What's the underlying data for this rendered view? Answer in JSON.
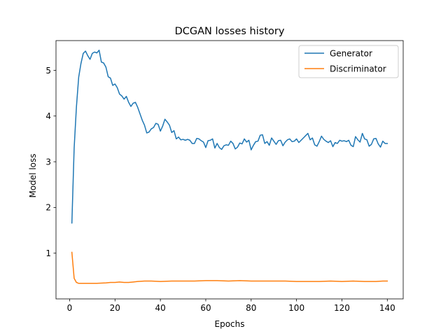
{
  "chart_data": {
    "type": "line",
    "title": "DCGAN losses history",
    "xlabel": "Epochs",
    "ylabel": "Model loss",
    "xlim": [
      -6,
      147
    ],
    "ylim": [
      0.0,
      5.65
    ],
    "xticks": [
      0,
      20,
      40,
      60,
      80,
      100,
      120,
      140
    ],
    "yticks": [
      1,
      2,
      3,
      4,
      5
    ],
    "grid": false,
    "legend": "top-right",
    "series": [
      {
        "name": "Generator",
        "color": "#1f77b4",
        "values": [
          [
            1,
            1.66
          ],
          [
            2,
            3.3
          ],
          [
            3,
            4.2
          ],
          [
            4,
            4.85
          ],
          [
            5,
            5.15
          ],
          [
            6,
            5.37
          ],
          [
            7,
            5.42
          ],
          [
            8,
            5.32
          ],
          [
            9,
            5.24
          ],
          [
            10,
            5.37
          ],
          [
            11,
            5.4
          ],
          [
            12,
            5.38
          ],
          [
            13,
            5.44
          ],
          [
            14,
            5.18
          ],
          [
            15,
            5.16
          ],
          [
            16,
            5.07
          ],
          [
            17,
            4.86
          ],
          [
            18,
            4.83
          ],
          [
            19,
            4.67
          ],
          [
            20,
            4.7
          ],
          [
            21,
            4.62
          ],
          [
            22,
            4.48
          ],
          [
            23,
            4.44
          ],
          [
            24,
            4.37
          ],
          [
            25,
            4.43
          ],
          [
            26,
            4.3
          ],
          [
            27,
            4.21
          ],
          [
            28,
            4.28
          ],
          [
            29,
            4.3
          ],
          [
            30,
            4.19
          ],
          [
            31,
            4.05
          ],
          [
            32,
            3.91
          ],
          [
            33,
            3.8
          ],
          [
            34,
            3.63
          ],
          [
            35,
            3.65
          ],
          [
            36,
            3.72
          ],
          [
            37,
            3.75
          ],
          [
            38,
            3.84
          ],
          [
            39,
            3.82
          ],
          [
            40,
            3.67
          ],
          [
            41,
            3.78
          ],
          [
            42,
            3.93
          ],
          [
            43,
            3.87
          ],
          [
            44,
            3.8
          ],
          [
            45,
            3.64
          ],
          [
            46,
            3.68
          ],
          [
            47,
            3.5
          ],
          [
            48,
            3.54
          ],
          [
            49,
            3.48
          ],
          [
            50,
            3.49
          ],
          [
            51,
            3.47
          ],
          [
            52,
            3.49
          ],
          [
            53,
            3.47
          ],
          [
            54,
            3.4
          ],
          [
            55,
            3.4
          ],
          [
            56,
            3.51
          ],
          [
            57,
            3.5
          ],
          [
            58,
            3.46
          ],
          [
            59,
            3.43
          ],
          [
            60,
            3.31
          ],
          [
            61,
            3.46
          ],
          [
            62,
            3.47
          ],
          [
            63,
            3.5
          ],
          [
            64,
            3.3
          ],
          [
            65,
            3.4
          ],
          [
            66,
            3.31
          ],
          [
            67,
            3.27
          ],
          [
            68,
            3.35
          ],
          [
            69,
            3.37
          ],
          [
            70,
            3.36
          ],
          [
            71,
            3.45
          ],
          [
            72,
            3.4
          ],
          [
            73,
            3.28
          ],
          [
            74,
            3.32
          ],
          [
            75,
            3.41
          ],
          [
            76,
            3.39
          ],
          [
            77,
            3.5
          ],
          [
            78,
            3.43
          ],
          [
            79,
            3.47
          ],
          [
            80,
            3.26
          ],
          [
            81,
            3.36
          ],
          [
            82,
            3.44
          ],
          [
            83,
            3.45
          ],
          [
            84,
            3.58
          ],
          [
            85,
            3.59
          ],
          [
            86,
            3.4
          ],
          [
            87,
            3.44
          ],
          [
            88,
            3.36
          ],
          [
            89,
            3.52
          ],
          [
            90,
            3.45
          ],
          [
            91,
            3.38
          ],
          [
            92,
            3.46
          ],
          [
            93,
            3.47
          ],
          [
            94,
            3.35
          ],
          [
            95,
            3.43
          ],
          [
            96,
            3.48
          ],
          [
            97,
            3.5
          ],
          [
            98,
            3.44
          ],
          [
            99,
            3.45
          ],
          [
            100,
            3.5
          ],
          [
            101,
            3.42
          ],
          [
            102,
            3.47
          ],
          [
            103,
            3.52
          ],
          [
            104,
            3.57
          ],
          [
            105,
            3.62
          ],
          [
            106,
            3.48
          ],
          [
            107,
            3.52
          ],
          [
            108,
            3.37
          ],
          [
            109,
            3.34
          ],
          [
            110,
            3.44
          ],
          [
            111,
            3.56
          ],
          [
            112,
            3.49
          ],
          [
            113,
            3.45
          ],
          [
            114,
            3.42
          ],
          [
            115,
            3.46
          ],
          [
            116,
            3.33
          ],
          [
            117,
            3.42
          ],
          [
            118,
            3.4
          ],
          [
            119,
            3.47
          ],
          [
            120,
            3.45
          ],
          [
            121,
            3.46
          ],
          [
            122,
            3.44
          ],
          [
            123,
            3.47
          ],
          [
            124,
            3.36
          ],
          [
            125,
            3.33
          ],
          [
            126,
            3.55
          ],
          [
            127,
            3.48
          ],
          [
            128,
            3.43
          ],
          [
            129,
            3.62
          ],
          [
            130,
            3.5
          ],
          [
            131,
            3.48
          ],
          [
            132,
            3.34
          ],
          [
            133,
            3.38
          ],
          [
            134,
            3.5
          ],
          [
            135,
            3.51
          ],
          [
            136,
            3.39
          ],
          [
            137,
            3.32
          ],
          [
            138,
            3.45
          ],
          [
            139,
            3.4
          ],
          [
            140,
            3.4
          ]
        ]
      },
      {
        "name": "Discriminator",
        "color": "#ff7f0e",
        "values": [
          [
            1,
            1.02
          ],
          [
            2,
            0.45
          ],
          [
            3,
            0.36
          ],
          [
            4,
            0.34
          ],
          [
            5,
            0.34
          ],
          [
            8,
            0.34
          ],
          [
            12,
            0.34
          ],
          [
            16,
            0.35
          ],
          [
            18,
            0.36
          ],
          [
            20,
            0.36
          ],
          [
            22,
            0.37
          ],
          [
            24,
            0.36
          ],
          [
            26,
            0.36
          ],
          [
            28,
            0.37
          ],
          [
            30,
            0.38
          ],
          [
            33,
            0.39
          ],
          [
            36,
            0.39
          ],
          [
            40,
            0.38
          ],
          [
            45,
            0.39
          ],
          [
            50,
            0.39
          ],
          [
            55,
            0.39
          ],
          [
            60,
            0.4
          ],
          [
            65,
            0.4
          ],
          [
            70,
            0.39
          ],
          [
            75,
            0.4
          ],
          [
            80,
            0.39
          ],
          [
            85,
            0.39
          ],
          [
            90,
            0.39
          ],
          [
            95,
            0.39
          ],
          [
            100,
            0.38
          ],
          [
            105,
            0.38
          ],
          [
            110,
            0.38
          ],
          [
            115,
            0.39
          ],
          [
            120,
            0.38
          ],
          [
            125,
            0.39
          ],
          [
            130,
            0.38
          ],
          [
            135,
            0.38
          ],
          [
            138,
            0.39
          ],
          [
            140,
            0.39
          ]
        ]
      }
    ]
  }
}
